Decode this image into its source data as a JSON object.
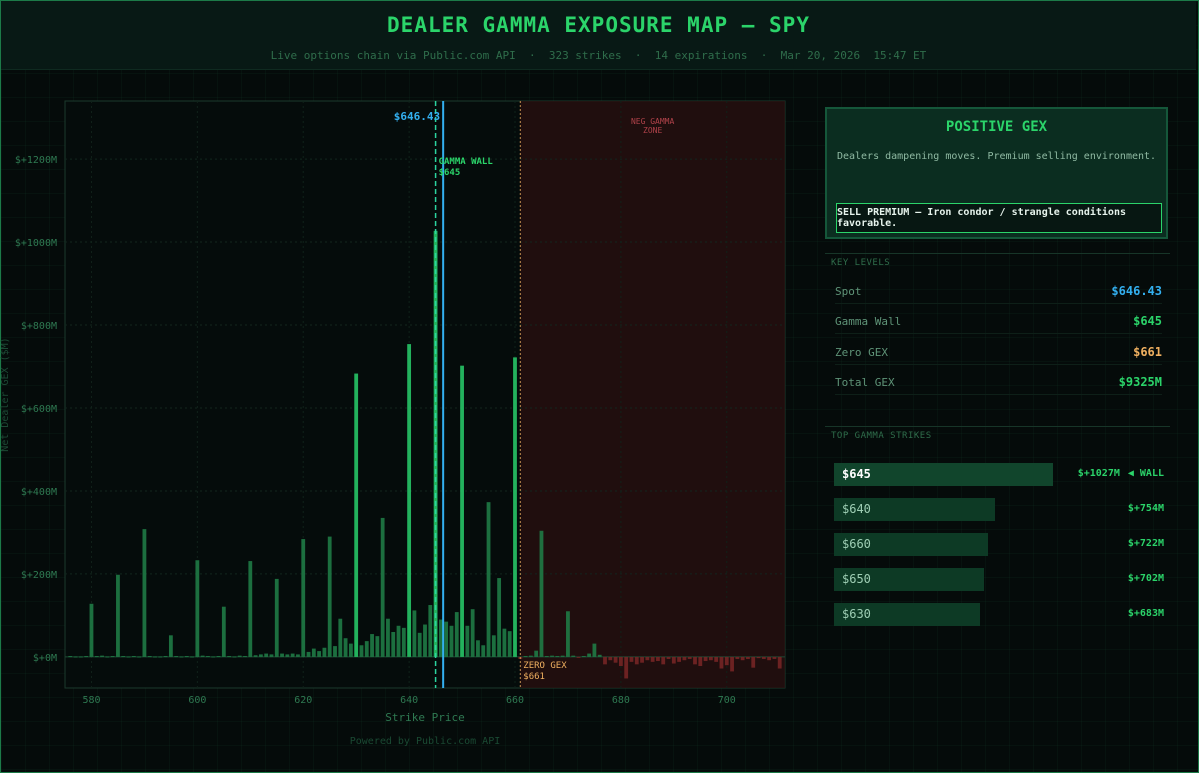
{
  "header": {
    "title": "DEALER GAMMA EXPOSURE MAP — SPY",
    "subtitle": "Live options chain via Public.com API  ·  323 strikes  ·  14 expirations  ·  Mar 20, 2026  15:47 ET"
  },
  "footer": "Powered by Public.com API",
  "regime": {
    "title": "POSITIVE GEX",
    "description": "Dealers dampening moves. Premium selling environment.",
    "action": "SELL PREMIUM — Iron condor / strangle conditions favorable."
  },
  "key_levels": {
    "section_title": "KEY LEVELS",
    "items": [
      {
        "label": "Spot",
        "value": "$646.43",
        "color": "#33b0f0"
      },
      {
        "label": "Gamma Wall",
        "value": "$645",
        "color": "#2bd46a"
      },
      {
        "label": "Zero GEX",
        "value": "$661",
        "color": "#f0b060"
      },
      {
        "label": "Total GEX",
        "value": "$9325M",
        "color": "#2bd46a"
      }
    ]
  },
  "top_strikes": {
    "section_title": "TOP GAMMA STRIKES",
    "wall_tag": "◀ WALL",
    "items": [
      {
        "strike": "$645",
        "value": "$+1027M",
        "gex": 1027
      },
      {
        "strike": "$640",
        "value": "$+754M",
        "gex": 754
      },
      {
        "strike": "$660",
        "value": "$+722M",
        "gex": 722
      },
      {
        "strike": "$650",
        "value": "$+702M",
        "gex": 702
      },
      {
        "strike": "$630",
        "value": "$+683M",
        "gex": 683
      }
    ]
  },
  "colors": {
    "positive_bar": "#1f7a45",
    "positive_bar_bright": "#27c466",
    "negative_bar": "#7a2626",
    "spot_line": "#33b0f0",
    "wall_line": "#2bd4a0",
    "zero_gex_line": "#f0b060",
    "neg_zone": "#2a0f10"
  },
  "chart_data": {
    "type": "bar",
    "xlabel": "Strike Price",
    "ylabel": "Net Dealer GEX ($M)",
    "xlim": [
      575,
      711
    ],
    "ylim": [
      -75,
      1340
    ],
    "x_ticks": [
      580,
      600,
      620,
      640,
      660,
      680,
      700
    ],
    "y_ticks": [
      0,
      200,
      400,
      600,
      800,
      1000,
      1200
    ],
    "y_tick_labels": [
      "$+0M",
      "$+200M",
      "$+400M",
      "$+600M",
      "$+800M",
      "$+1000M",
      "$+1200M"
    ],
    "grid": true,
    "annotations": {
      "spot": {
        "x": 646.43,
        "label": "$646.43"
      },
      "gamma_wall": {
        "x": 645,
        "label": "GAMMA WALL",
        "sublabel": "$645"
      },
      "zero_gex": {
        "x": 661,
        "label": "ZERO GEX",
        "sublabel": "$661"
      },
      "neg_zone": {
        "label": "NEG GAMMA",
        "sublabel": "ZONE"
      }
    },
    "series": [
      {
        "name": "Net GEX",
        "points": [
          [
            576,
            2
          ],
          [
            577,
            1
          ],
          [
            578,
            1
          ],
          [
            579,
            2
          ],
          [
            580,
            128
          ],
          [
            581,
            2
          ],
          [
            582,
            3
          ],
          [
            583,
            1
          ],
          [
            584,
            2
          ],
          [
            585,
            198
          ],
          [
            586,
            2
          ],
          [
            587,
            1
          ],
          [
            588,
            2
          ],
          [
            589,
            1
          ],
          [
            590,
            308
          ],
          [
            591,
            2
          ],
          [
            592,
            1
          ],
          [
            593,
            1
          ],
          [
            594,
            2
          ],
          [
            595,
            52
          ],
          [
            596,
            2
          ],
          [
            597,
            1
          ],
          [
            598,
            2
          ],
          [
            599,
            1
          ],
          [
            600,
            233
          ],
          [
            601,
            3
          ],
          [
            602,
            2
          ],
          [
            603,
            1
          ],
          [
            604,
            2
          ],
          [
            605,
            121
          ],
          [
            606,
            2
          ],
          [
            607,
            1
          ],
          [
            608,
            3
          ],
          [
            609,
            2
          ],
          [
            610,
            231
          ],
          [
            611,
            4
          ],
          [
            612,
            6
          ],
          [
            613,
            8
          ],
          [
            614,
            6
          ],
          [
            615,
            188
          ],
          [
            616,
            8
          ],
          [
            617,
            6
          ],
          [
            618,
            8
          ],
          [
            619,
            6
          ],
          [
            620,
            284
          ],
          [
            621,
            12
          ],
          [
            622,
            20
          ],
          [
            623,
            14
          ],
          [
            624,
            22
          ],
          [
            625,
            290
          ],
          [
            626,
            26
          ],
          [
            627,
            92
          ],
          [
            628,
            45
          ],
          [
            629,
            32
          ],
          [
            630,
            683
          ],
          [
            631,
            28
          ],
          [
            632,
            38
          ],
          [
            633,
            55
          ],
          [
            634,
            50
          ],
          [
            635,
            335
          ],
          [
            636,
            92
          ],
          [
            637,
            60
          ],
          [
            638,
            75
          ],
          [
            639,
            70
          ],
          [
            640,
            754
          ],
          [
            641,
            112
          ],
          [
            642,
            58
          ],
          [
            643,
            78
          ],
          [
            644,
            125
          ],
          [
            645,
            1027
          ],
          [
            646,
            90
          ],
          [
            647,
            85
          ],
          [
            648,
            75
          ],
          [
            649,
            108
          ],
          [
            650,
            702
          ],
          [
            651,
            75
          ],
          [
            652,
            115
          ],
          [
            653,
            40
          ],
          [
            654,
            28
          ],
          [
            655,
            373
          ],
          [
            656,
            52
          ],
          [
            657,
            190
          ],
          [
            658,
            68
          ],
          [
            659,
            62
          ],
          [
            660,
            722
          ],
          [
            661,
            -5
          ],
          [
            662,
            2
          ],
          [
            663,
            3
          ],
          [
            664,
            15
          ],
          [
            665,
            304
          ],
          [
            666,
            2
          ],
          [
            667,
            3
          ],
          [
            668,
            2
          ],
          [
            669,
            3
          ],
          [
            670,
            110
          ],
          [
            671,
            3
          ],
          [
            672,
            -2
          ],
          [
            673,
            2
          ],
          [
            674,
            8
          ],
          [
            675,
            32
          ],
          [
            676,
            5
          ],
          [
            677,
            -18
          ],
          [
            678,
            -8
          ],
          [
            679,
            -14
          ],
          [
            680,
            -22
          ],
          [
            681,
            -52
          ],
          [
            682,
            -12
          ],
          [
            683,
            -18
          ],
          [
            684,
            -14
          ],
          [
            685,
            -8
          ],
          [
            686,
            -12
          ],
          [
            687,
            -10
          ],
          [
            688,
            -18
          ],
          [
            689,
            -5
          ],
          [
            690,
            -16
          ],
          [
            691,
            -12
          ],
          [
            692,
            -8
          ],
          [
            693,
            -5
          ],
          [
            694,
            -18
          ],
          [
            695,
            -22
          ],
          [
            696,
            -10
          ],
          [
            697,
            -8
          ],
          [
            698,
            -12
          ],
          [
            699,
            -28
          ],
          [
            700,
            -20
          ],
          [
            701,
            -35
          ],
          [
            702,
            -5
          ],
          [
            703,
            -8
          ],
          [
            704,
            -5
          ],
          [
            705,
            -26
          ],
          [
            706,
            -3
          ],
          [
            707,
            -5
          ],
          [
            708,
            -8
          ],
          [
            709,
            -5
          ],
          [
            710,
            -28
          ]
        ]
      }
    ]
  }
}
